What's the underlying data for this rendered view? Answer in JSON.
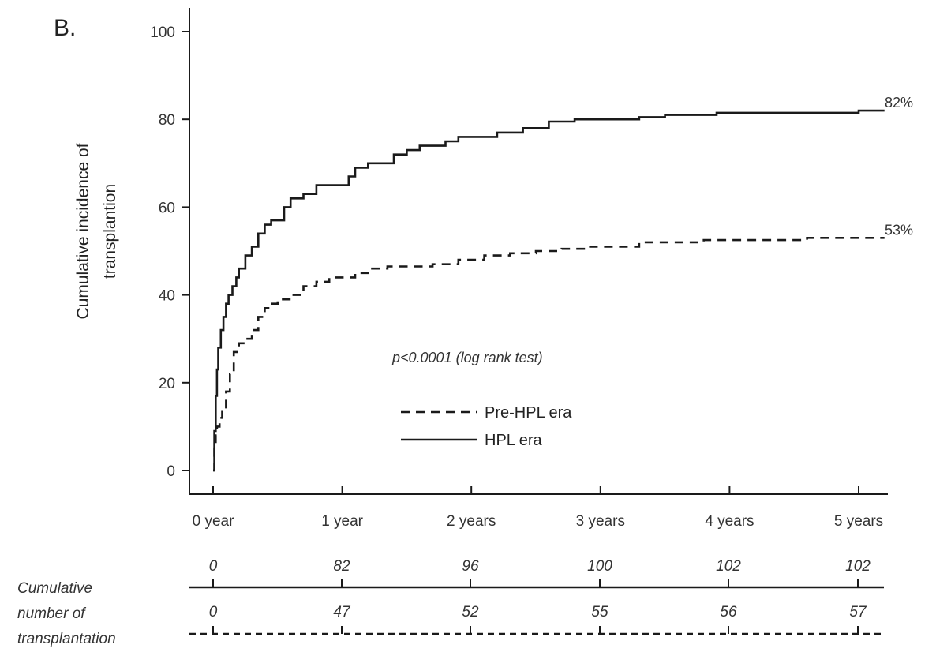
{
  "panel_label": "B.",
  "chart_data": {
    "type": "line",
    "title": "",
    "ylabel_lines": [
      "Cumulative incidence of",
      "transplantion"
    ],
    "xlabel": "",
    "ylim": [
      0,
      100
    ],
    "xlim": [
      0,
      5.2
    ],
    "y_ticks": [
      0,
      20,
      40,
      60,
      80,
      100
    ],
    "x_ticks": [
      {
        "x": 0,
        "label": "0 year"
      },
      {
        "x": 1,
        "label": "1 year"
      },
      {
        "x": 2,
        "label": "2 years"
      },
      {
        "x": 3,
        "label": "3 years"
      },
      {
        "x": 4,
        "label": "4 years"
      },
      {
        "x": 5,
        "label": "5 years"
      }
    ],
    "annotation": "p<0.0001 (log rank test)",
    "legend_position": "center",
    "series": [
      {
        "name": "Pre-HPL era",
        "style": "dashed",
        "color": "#1a1a1a",
        "end_label": "53%",
        "x": [
          0,
          0.01,
          0.02,
          0.03,
          0.05,
          0.07,
          0.1,
          0.13,
          0.16,
          0.2,
          0.25,
          0.3,
          0.35,
          0.4,
          0.45,
          0.5,
          0.6,
          0.7,
          0.8,
          0.9,
          1.0,
          1.1,
          1.2,
          1.35,
          1.5,
          1.7,
          1.9,
          2.1,
          2.3,
          2.5,
          2.7,
          2.9,
          3.1,
          3.3,
          3.5,
          3.8,
          4.0,
          4.3,
          4.6,
          5.0,
          5.2
        ],
        "y": [
          0,
          5,
          8,
          10,
          12,
          14,
          18,
          22,
          27,
          29,
          30,
          32,
          35,
          37,
          38,
          39,
          40,
          42,
          43,
          44,
          44,
          45,
          46,
          46.5,
          46.5,
          47,
          48,
          49,
          49.5,
          50,
          50.5,
          51,
          51,
          52,
          52,
          52.5,
          52.5,
          52.5,
          53,
          53,
          53
        ]
      },
      {
        "name": "HPL era",
        "style": "solid",
        "color": "#1a1a1a",
        "end_label": "82%",
        "x": [
          0,
          0.01,
          0.02,
          0.03,
          0.04,
          0.06,
          0.08,
          0.1,
          0.12,
          0.15,
          0.18,
          0.2,
          0.25,
          0.3,
          0.35,
          0.4,
          0.45,
          0.5,
          0.55,
          0.6,
          0.7,
          0.8,
          0.9,
          1.0,
          1.05,
          1.1,
          1.2,
          1.3,
          1.4,
          1.5,
          1.6,
          1.7,
          1.8,
          1.9,
          2.0,
          2.2,
          2.4,
          2.6,
          2.8,
          3.0,
          3.3,
          3.5,
          3.7,
          3.9,
          4.2,
          4.5,
          4.8,
          5.0,
          5.2
        ],
        "y": [
          0,
          9,
          17,
          23,
          28,
          32,
          35,
          38,
          40,
          42,
          44,
          46,
          49,
          51,
          54,
          56,
          57,
          57,
          60,
          62,
          63,
          65,
          65,
          65,
          67,
          69,
          70,
          70,
          72,
          73,
          74,
          74,
          75,
          76,
          76,
          77,
          78,
          79.5,
          80,
          80,
          80.5,
          81,
          81,
          81.5,
          81.5,
          81.5,
          81.5,
          82,
          82
        ]
      }
    ],
    "risk_table": {
      "title_lines": [
        "Cumulative",
        "number of",
        "transplantation"
      ],
      "rows": [
        {
          "series": "HPL era",
          "values": [
            "0",
            "82",
            "96",
            "100",
            "102",
            "102"
          ]
        },
        {
          "series": "Pre-HPL era",
          "values": [
            "0",
            "47",
            "52",
            "55",
            "56",
            "57"
          ]
        }
      ]
    }
  }
}
